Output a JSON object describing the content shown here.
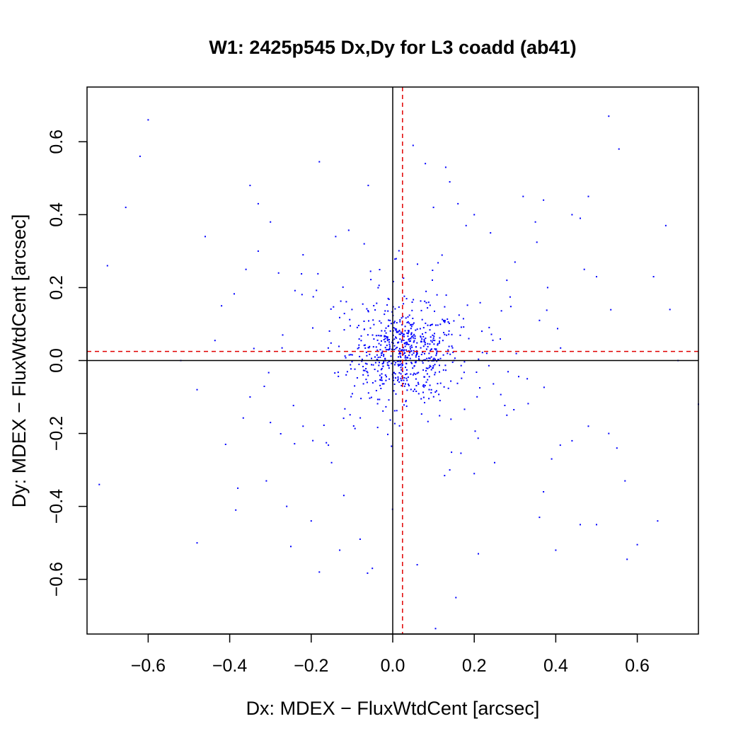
{
  "chart_data": {
    "type": "scatter",
    "title": "W1: 2425p545 Dx,Dy for L3 coadd (ab41)",
    "xlabel": "Dx: MDEX − FluxWtdCent [arcsec]",
    "ylabel": "Dy: MDEX − FluxWtdCent [arcsec]",
    "xlim": [
      -0.75,
      0.75
    ],
    "ylim": [
      -0.75,
      0.75
    ],
    "x_ticks": [
      "−0.6",
      "−0.4",
      "−0.2",
      "0.0",
      "0.2",
      "0.4",
      "0.6"
    ],
    "x_tick_values": [
      -0.6,
      -0.4,
      -0.2,
      0.0,
      0.2,
      0.4,
      0.6
    ],
    "y_ticks": [
      "−0.6",
      "−0.4",
      "−0.2",
      "0.0",
      "0.2",
      "0.4",
      "0.6"
    ],
    "y_tick_values": [
      -0.6,
      -0.4,
      -0.2,
      0.0,
      0.2,
      0.4,
      0.6
    ],
    "grid": false,
    "reference_lines": {
      "zero_x": 0.0,
      "zero_y": 0.0,
      "zero_color": "#000000",
      "mean_x": 0.024,
      "mean_y": 0.025,
      "mean_color": "#e00000"
    },
    "point_color": "#0000ff",
    "series": [
      {
        "outliers": [
          [
            -0.6,
            0.66
          ],
          [
            -0.62,
            0.56
          ],
          [
            -0.655,
            0.42
          ],
          [
            -0.7,
            0.26
          ],
          [
            -0.72,
            -0.34
          ],
          [
            -0.48,
            -0.5
          ],
          [
            -0.48,
            -0.08
          ],
          [
            -0.46,
            0.34
          ],
          [
            -0.42,
            0.15
          ],
          [
            -0.41,
            -0.23
          ],
          [
            -0.38,
            -0.35
          ],
          [
            -0.385,
            -0.41
          ],
          [
            -0.35,
            0.48
          ],
          [
            -0.33,
            0.43
          ],
          [
            -0.33,
            0.3
          ],
          [
            -0.3,
            0.38
          ],
          [
            -0.31,
            -0.33
          ],
          [
            -0.26,
            -0.4
          ],
          [
            -0.25,
            -0.51
          ],
          [
            -0.22,
            0.29
          ],
          [
            -0.2,
            -0.44
          ],
          [
            -0.18,
            0.545
          ],
          [
            -0.18,
            -0.58
          ],
          [
            -0.14,
            0.34
          ],
          [
            -0.13,
            -0.52
          ],
          [
            -0.12,
            -0.37
          ],
          [
            -0.08,
            -0.49
          ],
          [
            -0.06,
            0.48
          ],
          [
            -0.05,
            -0.57
          ],
          [
            -0.07,
            0.32
          ],
          [
            0.05,
            0.59
          ],
          [
            0.08,
            0.54
          ],
          [
            0.13,
            0.53
          ],
          [
            0.14,
            0.49
          ],
          [
            0.1,
            0.42
          ],
          [
            0.16,
            0.43
          ],
          [
            0.2,
            0.4
          ],
          [
            0.32,
            0.45
          ],
          [
            0.37,
            0.44
          ],
          [
            0.48,
            0.45
          ],
          [
            0.53,
            0.67
          ],
          [
            0.555,
            0.58
          ],
          [
            0.46,
            0.39
          ],
          [
            0.44,
            0.4
          ],
          [
            0.67,
            0.37
          ],
          [
            0.68,
            0.14
          ],
          [
            0.75,
            -0.12
          ],
          [
            0.7,
            0.0
          ],
          [
            0.57,
            -0.33
          ],
          [
            0.55,
            -0.24
          ],
          [
            0.53,
            -0.2
          ],
          [
            0.48,
            -0.18
          ],
          [
            0.44,
            -0.22
          ],
          [
            0.39,
            -0.27
          ],
          [
            0.37,
            -0.36
          ],
          [
            0.36,
            -0.43
          ],
          [
            0.4,
            -0.52
          ],
          [
            0.46,
            -0.45
          ],
          [
            0.5,
            -0.45
          ],
          [
            0.575,
            -0.545
          ],
          [
            0.6,
            -0.505
          ],
          [
            0.65,
            -0.44
          ],
          [
            0.64,
            0.23
          ],
          [
            0.5,
            0.23
          ],
          [
            0.47,
            0.25
          ],
          [
            0.28,
            0.22
          ],
          [
            0.21,
            -0.53
          ],
          [
            0.155,
            -0.65
          ],
          [
            0.105,
            -0.735
          ],
          [
            0.06,
            -0.56
          ],
          [
            0.2,
            -0.31
          ],
          [
            0.28,
            -0.15
          ],
          [
            0.24,
            0.35
          ],
          [
            0.18,
            0.37
          ],
          [
            -0.52,
            0.0
          ],
          [
            -0.3,
            -0.17
          ],
          [
            -0.28,
            0.24
          ],
          [
            -0.36,
            0.25
          ],
          [
            -0.35,
            -0.1
          ],
          [
            -0.22,
            -0.18
          ],
          [
            -0.27,
            0.07
          ],
          [
            0.33,
            -0.05
          ],
          [
            0.36,
            0.11
          ],
          [
            0.3,
            0.27
          ],
          [
            -0.15,
            -0.28
          ],
          [
            0.25,
            -0.28
          ],
          [
            0.35,
            0.38
          ],
          [
            -0.1,
            0.14
          ],
          [
            0.14,
            -0.3
          ],
          [
            0.38,
            0.2
          ]
        ]
      }
    ],
    "core_cloud": {
      "center": [
        0.03,
        0.02
      ],
      "sigma": [
        0.065,
        0.06
      ],
      "count": 520,
      "halo_sigma": [
        0.16,
        0.15
      ],
      "halo_count": 200
    }
  }
}
